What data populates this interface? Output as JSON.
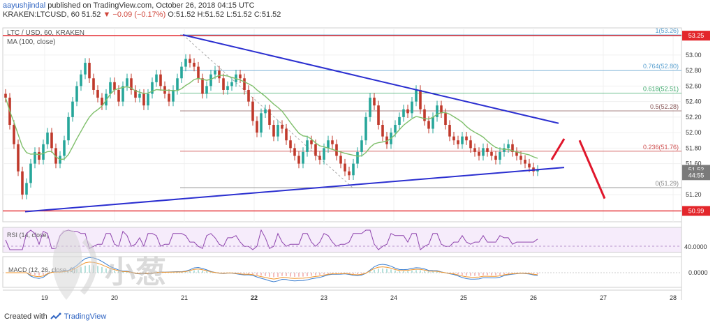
{
  "header": {
    "author": "aayushjindal",
    "published": " published on TradingView.com, October 26, 2018 04:15 UTC",
    "ohlc_line": "KRAKEN:LTCUSD, 60  51.52 ",
    "change": "▼ −0.09 (−0.17%)",
    "ohlc_values": " O:51.52 H:51.52 L:51.52 C:51.52"
  },
  "footer": {
    "created_with": "Created with",
    "tradingview": "TradingView"
  },
  "colors": {
    "up": "#26a69a",
    "down": "#c0392b",
    "trend": "#2b2fd0",
    "ma": "#7fbf6b",
    "fib": "#888888",
    "arrow": "#e0162b",
    "hline": "#e3262b",
    "rsi": "#8e44ad"
  },
  "chart_data": {
    "type": "candlestick",
    "title": "LTC / USD, 60, KRAKEN",
    "ma_label": "MA (100, close)",
    "rsi_label": "RSI (14, close)",
    "rsi_tick": "40.0000",
    "macd_label": "MACD (12, 26, close, 9)",
    "macd_tick": "0.0000",
    "x_ticks": [
      "19",
      "20",
      "21",
      "22",
      "23",
      "24",
      "25",
      "26",
      "27",
      "28"
    ],
    "y_ticks": [
      "53.00",
      "52.80",
      "52.60",
      "52.40",
      "52.20",
      "52.00",
      "51.80",
      "51.60",
      "51.20"
    ],
    "ylim": [
      50.85,
      53.35
    ],
    "price_tags": [
      {
        "text": "53.25",
        "value": 53.25,
        "color": "#e3262b"
      },
      {
        "text": "51.52",
        "value": 51.52,
        "color": "#7a7a7a"
      },
      {
        "text": "44:55",
        "value": 51.45,
        "color": "#7a7a7a"
      },
      {
        "text": "50.99",
        "value": 50.99,
        "color": "#e3262b"
      }
    ],
    "fib_levels": [
      {
        "label": "1(53.26)",
        "value": 53.26,
        "color": "#5aa0d0"
      },
      {
        "label": "0.764(52.80)",
        "value": 52.8,
        "color": "#5aa0d0"
      },
      {
        "label": "0.618(52.51)",
        "value": 52.51,
        "color": "#3aa86a"
      },
      {
        "label": "0.5(52.28)",
        "value": 52.28,
        "color": "#8a5a5a"
      },
      {
        "label": "0.236(51.76)",
        "value": 51.76,
        "color": "#d05050"
      },
      {
        "label": "0(51.29)",
        "value": 51.29,
        "color": "#888888"
      }
    ],
    "horizontal_lines": [
      53.25,
      50.99
    ],
    "watermark": "小葱",
    "closes": [
      52.45,
      52.1,
      51.85,
      51.5,
      51.2,
      51.35,
      51.6,
      51.75,
      51.65,
      51.85,
      52.0,
      51.8,
      51.6,
      51.7,
      51.9,
      52.2,
      52.4,
      52.6,
      52.75,
      52.9,
      52.7,
      52.55,
      52.45,
      52.35,
      52.5,
      52.65,
      52.55,
      52.4,
      52.6,
      52.7,
      52.55,
      52.45,
      52.5,
      52.35,
      52.5,
      52.65,
      52.75,
      52.6,
      52.5,
      52.4,
      52.55,
      52.7,
      52.85,
      52.95,
      52.9,
      52.85,
      52.7,
      52.5,
      52.6,
      52.75,
      52.8,
      52.7,
      52.55,
      52.6,
      52.65,
      52.75,
      52.7,
      52.55,
      52.4,
      52.15,
      52.0,
      52.25,
      52.3,
      52.1,
      51.95,
      52.1,
      52.05,
      51.9,
      51.8,
      51.7,
      51.6,
      51.75,
      51.9,
      51.85,
      51.7,
      51.65,
      51.8,
      51.9,
      51.85,
      51.7,
      51.6,
      51.5,
      51.45,
      51.6,
      51.75,
      51.9,
      52.2,
      52.45,
      52.35,
      52.1,
      51.95,
      51.85,
      52.0,
      52.1,
      52.2,
      52.3,
      52.25,
      52.4,
      52.55,
      52.3,
      52.15,
      52.05,
      52.2,
      52.35,
      52.25,
      52.1,
      51.95,
      51.9,
      51.85,
      51.95,
      51.9,
      51.8,
      51.75,
      51.7,
      51.8,
      51.75,
      51.7,
      51.65,
      51.75,
      51.8,
      51.85,
      51.75,
      51.7,
      51.65,
      51.6,
      51.55,
      51.5,
      51.52
    ]
  }
}
